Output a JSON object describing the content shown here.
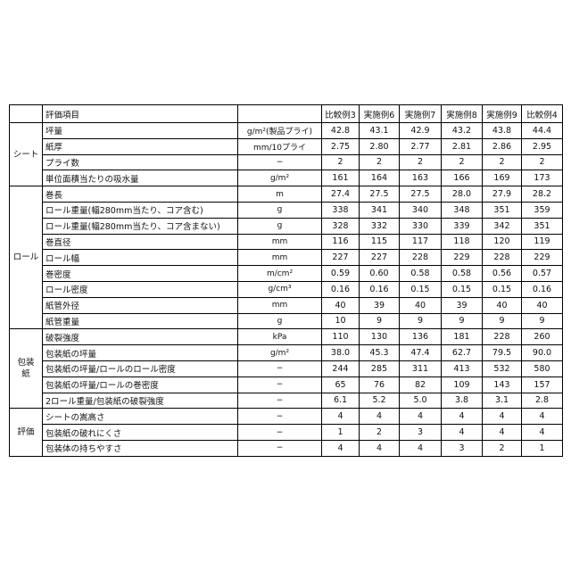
{
  "header": {
    "item_label": "評価項目",
    "unit_label": "",
    "columns": [
      "比較例3",
      "実施例6",
      "実施例7",
      "実施例8",
      "実施例9",
      "比較例4"
    ]
  },
  "groups": [
    {
      "label": "シート",
      "rows": [
        {
          "item": "坪量",
          "unit": "g/m²(製品プライ)",
          "values": [
            "42.8",
            "43.1",
            "42.9",
            "43.2",
            "43.8",
            "44.4"
          ]
        },
        {
          "item": "紙厚",
          "unit": "mm/10プライ",
          "values": [
            "2.75",
            "2.80",
            "2.77",
            "2.81",
            "2.86",
            "2.95"
          ]
        },
        {
          "item": "プライ数",
          "unit": "−",
          "values": [
            "2",
            "2",
            "2",
            "2",
            "2",
            "2"
          ]
        },
        {
          "item": "単位面積当たりの吸水量",
          "unit": "g/m²",
          "values": [
            "161",
            "164",
            "163",
            "166",
            "169",
            "173"
          ]
        }
      ]
    },
    {
      "label": "ロール",
      "rows": [
        {
          "item": "巻長",
          "unit": "m",
          "values": [
            "27.4",
            "27.5",
            "27.5",
            "28.0",
            "27.9",
            "28.2"
          ]
        },
        {
          "item": "ロール重量(幅280mm当たり、コア含む)",
          "unit": "g",
          "values": [
            "338",
            "341",
            "340",
            "348",
            "351",
            "359"
          ]
        },
        {
          "item": "ロール重量(幅280mm当たり、コア含まない)",
          "unit": "g",
          "values": [
            "328",
            "332",
            "330",
            "339",
            "342",
            "351"
          ]
        },
        {
          "item": "巻直径",
          "unit": "mm",
          "values": [
            "116",
            "115",
            "117",
            "118",
            "120",
            "119"
          ]
        },
        {
          "item": "ロール幅",
          "unit": "mm",
          "values": [
            "227",
            "227",
            "228",
            "229",
            "228",
            "229"
          ]
        },
        {
          "item": "巻密度",
          "unit": "m/cm²",
          "values": [
            "0.59",
            "0.60",
            "0.58",
            "0.58",
            "0.56",
            "0.57"
          ]
        },
        {
          "item": "ロール密度",
          "unit": "g/cm³",
          "values": [
            "0.16",
            "0.16",
            "0.15",
            "0.15",
            "0.15",
            "0.16"
          ]
        },
        {
          "item": "紙管外径",
          "unit": "mm",
          "values": [
            "40",
            "39",
            "40",
            "39",
            "40",
            "40"
          ]
        },
        {
          "item": "紙管重量",
          "unit": "g",
          "values": [
            "10",
            "9",
            "9",
            "9",
            "9",
            "9"
          ]
        }
      ]
    },
    {
      "label": "包装紙",
      "rows": [
        {
          "item": "破裂強度",
          "unit": "kPa",
          "values": [
            "110",
            "130",
            "136",
            "181",
            "228",
            "260"
          ]
        },
        {
          "item": "包装紙の坪量",
          "unit": "g/m²",
          "values": [
            "38.0",
            "45.3",
            "47.4",
            "62.7",
            "79.5",
            "90.0"
          ]
        },
        {
          "item": "包装紙の坪量/ロールのロール密度",
          "unit": "−",
          "values": [
            "244",
            "285",
            "311",
            "413",
            "532",
            "580"
          ]
        },
        {
          "item": "包装紙の坪量/ロールの巻密度",
          "unit": "−",
          "values": [
            "65",
            "76",
            "82",
            "109",
            "143",
            "157"
          ]
        },
        {
          "item": "2ロール重量/包装紙の破裂強度",
          "unit": "−",
          "values": [
            "6.1",
            "5.2",
            "5.0",
            "3.8",
            "3.1",
            "2.8"
          ]
        }
      ]
    },
    {
      "label": "評価",
      "rows": [
        {
          "item": "シートの嵩高さ",
          "unit": "−",
          "values": [
            "4",
            "4",
            "4",
            "4",
            "4",
            "4"
          ]
        },
        {
          "item": "包装紙の破れにくさ",
          "unit": "−",
          "values": [
            "1",
            "2",
            "3",
            "4",
            "4",
            "4"
          ]
        },
        {
          "item": "包装体の持ちやすさ",
          "unit": "−",
          "values": [
            "4",
            "4",
            "4",
            "3",
            "2",
            "1"
          ]
        }
      ]
    }
  ]
}
